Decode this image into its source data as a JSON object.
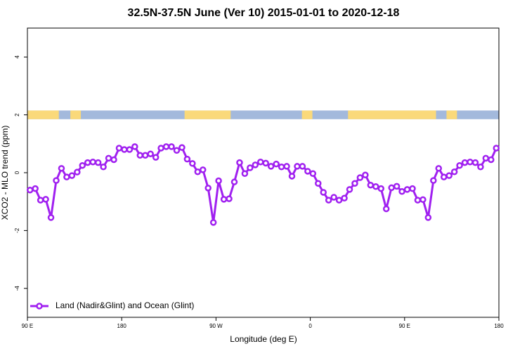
{
  "chart_data": {
    "type": "line",
    "title": "32.5N-37.5N June (Ver 10)   2015-01-01 to 2020-12-18",
    "x_label": "Longitude (deg E)",
    "y_label": "XCO2 - MLO trend (ppm)",
    "xlim": [
      90,
      540
    ],
    "xticks": [
      {
        "value": 90,
        "label": "90 E"
      },
      180,
      {
        "value": 270,
        "label": "90 W"
      },
      {
        "value": 360,
        "label": "0"
      },
      {
        "value": 450,
        "label": "90 E"
      },
      {
        "value": 540,
        "label": "180"
      }
    ],
    "ylim": [
      -5,
      5
    ],
    "yticks": [
      -4,
      -2,
      0,
      2,
      4
    ],
    "legend": "bottom-left",
    "x": [
      92.5,
      97.5,
      102.5,
      107.5,
      112.5,
      117.5,
      122.5,
      127.5,
      132.5,
      137.5,
      142.5,
      147.5,
      152.5,
      157.5,
      162.5,
      167.5,
      172.5,
      177.5,
      182.5,
      187.5,
      192.5,
      197.5,
      202.5,
      207.5,
      212.5,
      217.5,
      222.5,
      227.5,
      232.5,
      237.5,
      242.5,
      247.5,
      252.5,
      257.5,
      262.5,
      267.5,
      272.5,
      277.5,
      282.5,
      287.5,
      292.5,
      297.5,
      302.5,
      307.5,
      312.5,
      317.5,
      322.5,
      327.5,
      332.5,
      337.5,
      342.5,
      347.5,
      352.5,
      357.5,
      362.5,
      367.5,
      372.5,
      377.5,
      382.5,
      387.5,
      392.5,
      397.5,
      402.5,
      407.5,
      412.5,
      417.5,
      422.5,
      427.5,
      432.5,
      437.5,
      442.5,
      447.5,
      452.5,
      457.5,
      462.5,
      467.5,
      472.5,
      477.5,
      482.5,
      487.5,
      492.5,
      497.5,
      502.5,
      507.5,
      512.5,
      517.5,
      522.5,
      527.5,
      532.5,
      537.5
    ],
    "series": [
      {
        "name": "Land (Nadir&Glint) and Ocean (Glint)",
        "color": "#a020f0",
        "values": [
          -0.6,
          -0.55,
          -0.95,
          -0.92,
          -1.55,
          -0.27,
          0.15,
          -0.15,
          -0.1,
          0.02,
          0.25,
          0.35,
          0.37,
          0.35,
          0.2,
          0.5,
          0.45,
          0.85,
          0.8,
          0.8,
          0.9,
          0.6,
          0.6,
          0.65,
          0.53,
          0.85,
          0.9,
          0.9,
          0.77,
          0.87,
          0.47,
          0.32,
          0.03,
          0.1,
          -0.53,
          -1.72,
          -0.28,
          -0.92,
          -0.9,
          -0.32,
          0.35,
          -0.03,
          0.17,
          0.27,
          0.37,
          0.33,
          0.22,
          0.3,
          0.2,
          0.22,
          -0.12,
          0.22,
          0.22,
          0.05,
          -0.03,
          -0.37,
          -0.68,
          -0.95,
          -0.85,
          -0.95,
          -0.88,
          -0.58,
          -0.37,
          -0.17,
          -0.08,
          -0.43,
          -0.48,
          -0.55,
          -1.25,
          -0.52,
          -0.47,
          -0.65,
          -0.58,
          -0.55,
          -0.95,
          -0.93,
          -1.55,
          -0.27,
          0.15,
          -0.15,
          -0.1,
          0.03,
          0.25,
          0.35,
          0.37,
          0.35,
          0.2,
          0.5,
          0.45,
          0.85
        ]
      }
    ],
    "strip": {
      "ylim": [
        1.85,
        2.15
      ],
      "ocean_color": "#a3b9dc",
      "land_color": "#fad97a",
      "land": [
        [
          90,
          120
        ],
        [
          131,
          141
        ],
        [
          240,
          284
        ],
        [
          352,
          362
        ],
        [
          396,
          480
        ],
        [
          490,
          500
        ]
      ]
    }
  }
}
